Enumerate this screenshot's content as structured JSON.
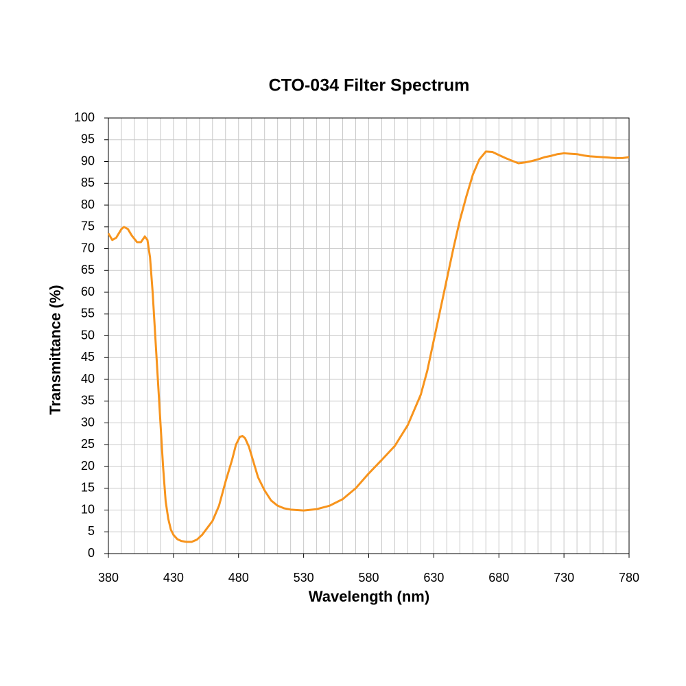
{
  "chart_data": {
    "type": "line",
    "title": "CTO-034 Filter Spectrum",
    "x_label": "Wavelength (nm)",
    "y_label": "Transmittance (%)",
    "xlim": [
      380,
      780
    ],
    "ylim": [
      0,
      100
    ],
    "xticks": [
      380,
      430,
      480,
      530,
      580,
      630,
      680,
      730,
      780
    ],
    "xminorticks": [
      380,
      390,
      400,
      410,
      420,
      430,
      440,
      450,
      460,
      470,
      480,
      490,
      500,
      510,
      520,
      530,
      540,
      550,
      560,
      570,
      580,
      590,
      600,
      610,
      620,
      630,
      640,
      650,
      660,
      670,
      680,
      690,
      700,
      710,
      720,
      730,
      740,
      750,
      760,
      770,
      780
    ],
    "yticks": [
      0,
      5,
      10,
      15,
      20,
      25,
      30,
      35,
      40,
      45,
      50,
      55,
      60,
      65,
      70,
      75,
      80,
      85,
      90,
      95,
      100
    ],
    "grid": true,
    "series": [
      {
        "color": "#f7941d",
        "x": [
          380,
          383,
          386,
          390,
          392,
          395,
          398,
          402,
          405,
          408,
          410,
          412,
          414,
          416,
          418,
          420,
          422,
          424,
          426,
          428,
          430,
          433,
          436,
          440,
          444,
          448,
          452,
          455,
          460,
          465,
          470,
          475,
          478,
          481,
          483,
          485,
          488,
          491,
          495,
          500,
          505,
          510,
          515,
          520,
          530,
          540,
          550,
          560,
          570,
          580,
          590,
          600,
          610,
          620,
          625,
          630,
          635,
          640,
          645,
          650,
          655,
          660,
          665,
          670,
          675,
          680,
          685,
          690,
          695,
          700,
          705,
          710,
          715,
          720,
          725,
          730,
          735,
          740,
          745,
          750,
          755,
          760,
          765,
          770,
          775,
          780
        ],
        "values": [
          73.5,
          72,
          72.5,
          74.5,
          75,
          74.5,
          73,
          71.5,
          71.5,
          72.8,
          72,
          68,
          60,
          50,
          40,
          30,
          20,
          12,
          8,
          5.5,
          4.3,
          3.3,
          2.9,
          2.7,
          2.7,
          3.2,
          4.3,
          5.5,
          7.5,
          11,
          16.5,
          21.5,
          25,
          26.8,
          27,
          26.5,
          24.5,
          21.5,
          17.5,
          14.5,
          12.2,
          11,
          10.4,
          10.1,
          9.9,
          10.2,
          11,
          12.5,
          15,
          18.4,
          21.5,
          24.7,
          29.5,
          36.5,
          42,
          49,
          56,
          63,
          70,
          76.5,
          82,
          87,
          90.5,
          92.3,
          92.2,
          91.5,
          90.8,
          90.2,
          89.6,
          89.8,
          90.1,
          90.5,
          91,
          91.3,
          91.7,
          91.9,
          91.8,
          91.7,
          91.4,
          91.2,
          91.1,
          91,
          90.9,
          90.8,
          90.8,
          91
        ]
      }
    ]
  }
}
